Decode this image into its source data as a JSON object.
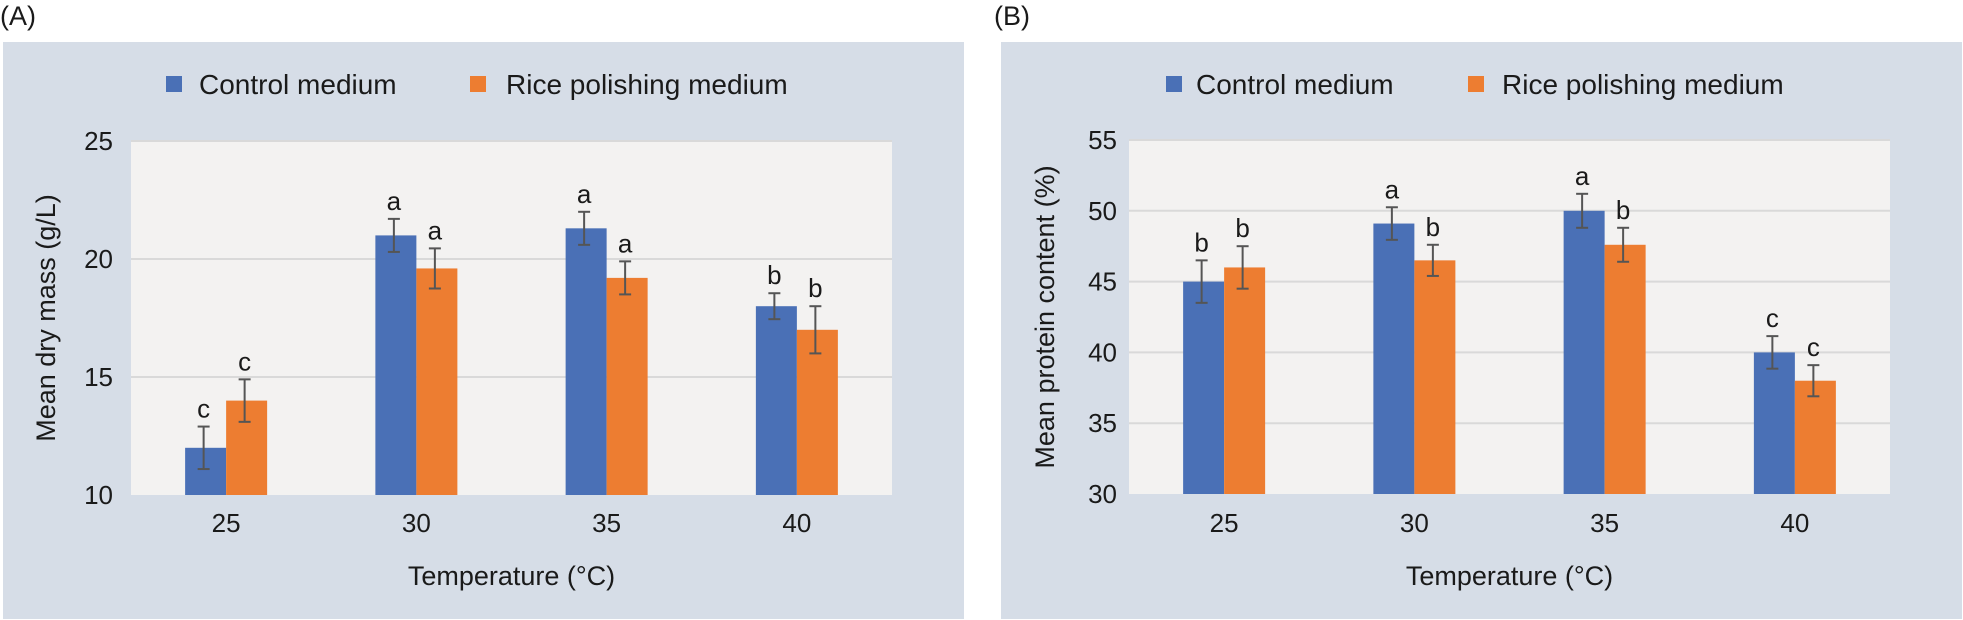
{
  "figure": {
    "panels": [
      {
        "label": "(A)"
      },
      {
        "label": "(B)"
      }
    ]
  },
  "colors": {
    "control": "#4a70b6",
    "rice": "#ed7d31",
    "panel_bg": "#d6dde7",
    "plot_bg": "#f3f2f1",
    "error_bar": "#555555"
  },
  "chart_data": [
    {
      "type": "bar",
      "panel": "(A)",
      "title": "",
      "xlabel": "Temperature (°C)",
      "ylabel": "Mean dry mass (g/L)",
      "ylim": [
        10,
        25
      ],
      "yticks": [
        10,
        15,
        20,
        25
      ],
      "grid": true,
      "legend_position": "top",
      "categories": [
        "25",
        "30",
        "35",
        "40"
      ],
      "series": [
        {
          "name": "Control medium",
          "color": "#4a70b6",
          "values": [
            12.0,
            21.0,
            21.3,
            18.0
          ],
          "error": [
            0.9,
            0.7,
            0.7,
            0.55
          ],
          "significance": [
            "c",
            "a",
            "a",
            "b"
          ]
        },
        {
          "name": "Rice polishing medium",
          "color": "#ed7d31",
          "values": [
            14.0,
            19.6,
            19.2,
            17.0
          ],
          "error": [
            0.9,
            0.85,
            0.7,
            1.0
          ],
          "significance": [
            "c",
            "a",
            "a",
            "b"
          ]
        }
      ]
    },
    {
      "type": "bar",
      "panel": "(B)",
      "title": "",
      "xlabel": "Temperature (°C)",
      "ylabel": "Mean protein content (%)",
      "ylim": [
        30,
        55
      ],
      "yticks": [
        30,
        35,
        40,
        45,
        50,
        55
      ],
      "grid": true,
      "legend_position": "top",
      "categories": [
        "25",
        "30",
        "35",
        "40"
      ],
      "series": [
        {
          "name": "Control medium",
          "color": "#4a70b6",
          "values": [
            45.0,
            49.1,
            50.0,
            40.0
          ],
          "error": [
            1.5,
            1.15,
            1.2,
            1.15
          ],
          "significance": [
            "b",
            "a",
            "a",
            "c"
          ]
        },
        {
          "name": "Rice polishing medium",
          "color": "#ed7d31",
          "values": [
            46.0,
            46.5,
            47.6,
            38.0
          ],
          "error": [
            1.5,
            1.1,
            1.2,
            1.1
          ],
          "significance": [
            "b",
            "b",
            "b",
            "c"
          ]
        }
      ]
    }
  ]
}
